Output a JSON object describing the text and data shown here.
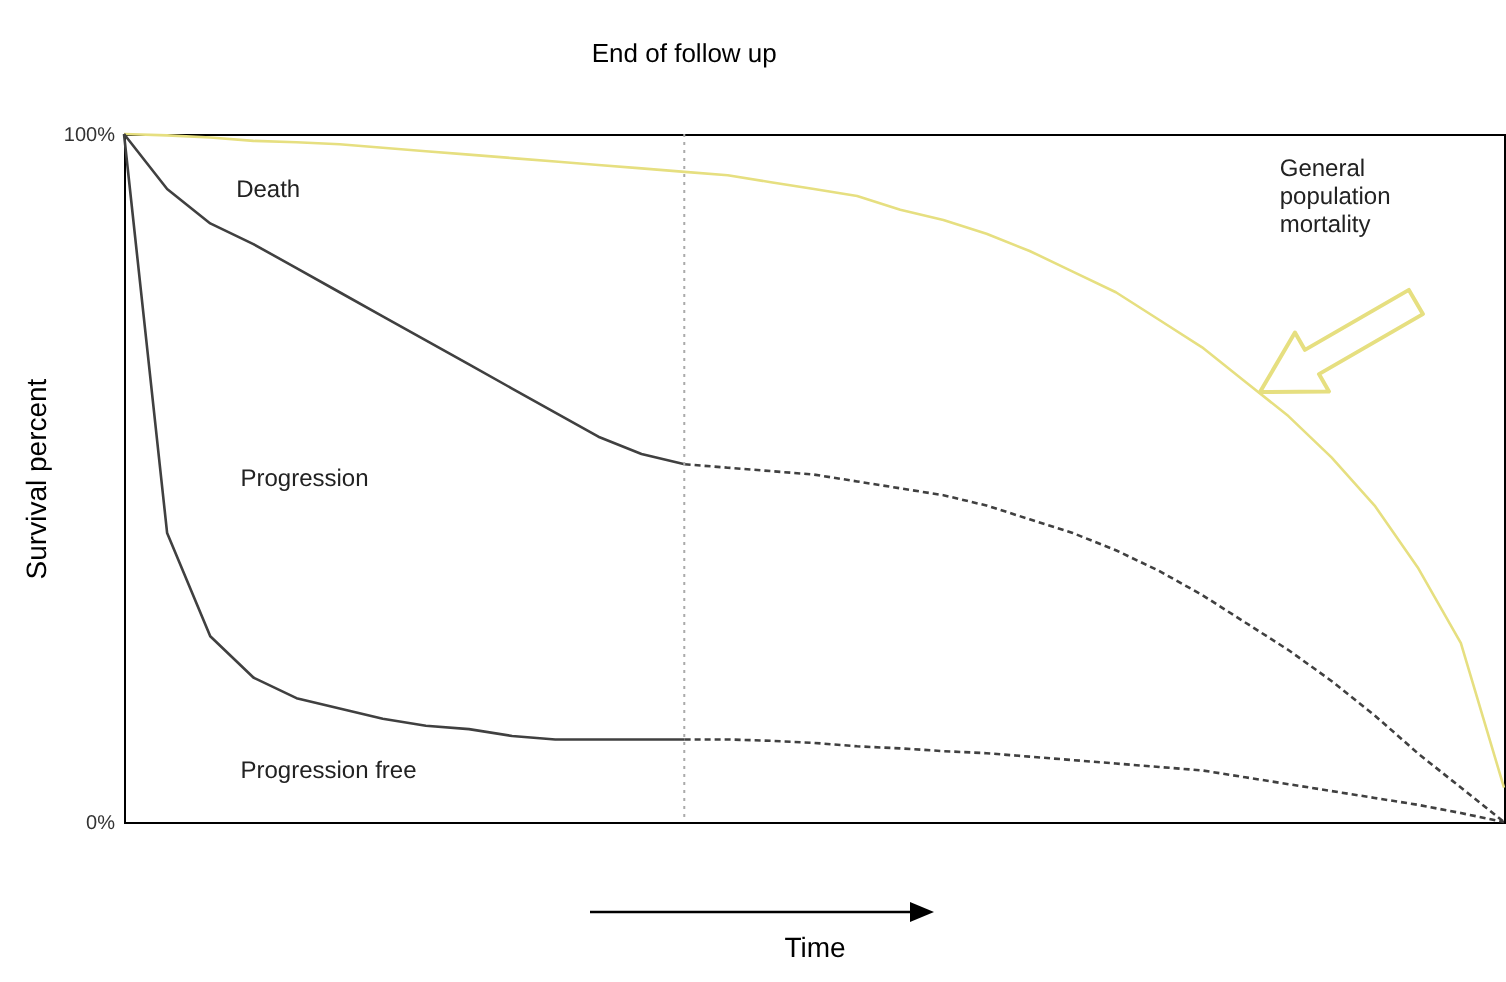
{
  "chart_data": {
    "type": "line",
    "xlabel": "Time",
    "ylabel": "Survival percent",
    "categories": [
      null,
      null,
      null,
      null,
      null,
      null,
      null,
      null,
      null,
      null,
      null,
      null,
      null,
      null,
      null,
      null,
      null,
      null,
      null,
      null,
      null,
      null,
      null,
      null,
      null,
      null,
      null,
      null,
      null,
      null,
      null,
      null,
      null
    ],
    "ylim": [
      0,
      100
    ],
    "yticks": [
      {
        "value": 0,
        "label": "0%"
      },
      {
        "value": 100,
        "label": "100%"
      }
    ],
    "tick_labels": "y",
    "grid": false,
    "marker": "none",
    "series": [
      {
        "color": "#e6df80",
        "line_style": "solid",
        "values": [
          100,
          99.8,
          99.5,
          99,
          98.8,
          98.5,
          98,
          97.5,
          97,
          96.5,
          96,
          95.5,
          95,
          94.5,
          94,
          93,
          92,
          91,
          89,
          87.5,
          85.5,
          83,
          80,
          77,
          73,
          69,
          64,
          59,
          53,
          46,
          37,
          26,
          5
        ]
      },
      {
        "color": "#404040",
        "line_style": "solid",
        "values": [
          100,
          92,
          87,
          84,
          80.5,
          77,
          73.5,
          70,
          66.5,
          63,
          59.5,
          56,
          53.5,
          52,
          null,
          null,
          null,
          null,
          null,
          null,
          null,
          null,
          null,
          null,
          null,
          null,
          null,
          null,
          null,
          null,
          null,
          null,
          null
        ]
      },
      {
        "color": "#404040",
        "line_style": "dashed",
        "values": [
          null,
          null,
          null,
          null,
          null,
          null,
          null,
          null,
          null,
          null,
          null,
          null,
          null,
          52,
          51.5,
          51,
          50.5,
          49.5,
          48.5,
          47.5,
          46,
          44,
          42,
          39.5,
          36.5,
          33,
          29,
          25,
          20.5,
          15.5,
          10,
          5,
          0
        ]
      },
      {
        "color": "#404040",
        "line_style": "solid",
        "values": [
          100,
          42,
          27,
          21,
          18,
          16.5,
          15,
          14,
          13.5,
          12.5,
          12,
          12,
          12,
          12,
          null,
          null,
          null,
          null,
          null,
          null,
          null,
          null,
          null,
          null,
          null,
          null,
          null,
          null,
          null,
          null,
          null,
          null,
          null
        ]
      },
      {
        "color": "#404040",
        "line_style": "dashed",
        "values": [
          null,
          null,
          null,
          null,
          null,
          null,
          null,
          null,
          null,
          null,
          null,
          null,
          null,
          12,
          12,
          11.8,
          11.5,
          11,
          10.7,
          10.3,
          10,
          9.5,
          9,
          8.5,
          8,
          7.5,
          6.5,
          5.5,
          4.5,
          3.5,
          2.5,
          1.3,
          0
        ]
      }
    ],
    "annotations": [
      "End of follow up",
      "Death",
      "Progression",
      "Progression free",
      "General population mortality"
    ]
  }
}
